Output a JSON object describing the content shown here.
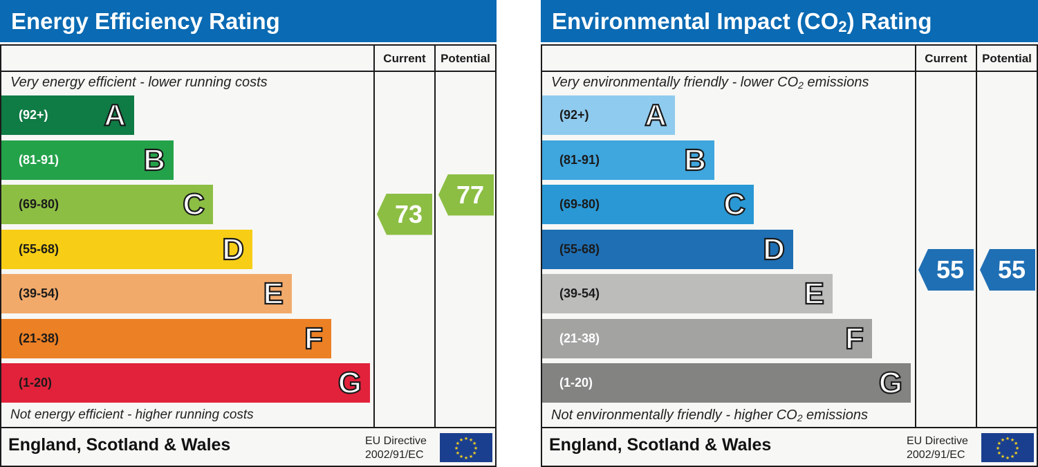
{
  "chart_data": [
    {
      "type": "bar",
      "title": "Energy Efficiency Rating",
      "columns": [
        "Current",
        "Potential"
      ],
      "top_caption": "Very energy efficient - lower running costs",
      "bottom_caption": "Not energy efficient - higher running costs",
      "bands": [
        {
          "letter": "A",
          "range": "(92+)",
          "color": "#0f7b45",
          "text_color": "#ffffff"
        },
        {
          "letter": "B",
          "range": "(81-91)",
          "color": "#24a24a",
          "text_color": "#ffffff"
        },
        {
          "letter": "C",
          "range": "(69-80)",
          "color": "#8cbe44",
          "text_color": "#1a1a1a"
        },
        {
          "letter": "D",
          "range": "(55-68)",
          "color": "#f7ce15",
          "text_color": "#1a1a1a"
        },
        {
          "letter": "E",
          "range": "(39-54)",
          "color": "#f2aa6b",
          "text_color": "#1a1a1a"
        },
        {
          "letter": "F",
          "range": "(21-38)",
          "color": "#ec8024",
          "text_color": "#1a1a1a"
        },
        {
          "letter": "G",
          "range": "(1-20)",
          "color": "#e2223b",
          "text_color": "#1a1a1a"
        }
      ],
      "current": {
        "value": "73",
        "band": "C",
        "color": "#8cbe44"
      },
      "potential": {
        "value": "77",
        "band": "C",
        "color": "#8cbe44"
      },
      "footer": {
        "region": "England, Scotland & Wales",
        "directive_line1": "EU Directive",
        "directive_line2": "2002/91/EC"
      }
    },
    {
      "type": "bar",
      "title_main": "Environmental Impact (CO",
      "title_sub": "2",
      "title_end": ") Rating",
      "columns": [
        "Current",
        "Potential"
      ],
      "top_caption_main": "Very environmentally friendly - lower CO",
      "top_caption_sub": "2",
      "top_caption_end": " emissions",
      "bottom_caption_main": "Not environmentally friendly - higher CO",
      "bottom_caption_sub": "2",
      "bottom_caption_end": " emissions",
      "bands": [
        {
          "letter": "A",
          "range": "(92+)",
          "color": "#8fcbef",
          "text_color": "#1a1a1a"
        },
        {
          "letter": "B",
          "range": "(81-91)",
          "color": "#3fa6de",
          "text_color": "#1a1a1a"
        },
        {
          "letter": "C",
          "range": "(69-80)",
          "color": "#2a98d4",
          "text_color": "#1a1a1a"
        },
        {
          "letter": "D",
          "range": "(55-68)",
          "color": "#1f6fb4",
          "text_color": "#1a1a1a"
        },
        {
          "letter": "E",
          "range": "(39-54)",
          "color": "#bcbcbb",
          "text_color": "#1a1a1a"
        },
        {
          "letter": "F",
          "range": "(21-38)",
          "color": "#a3a3a2",
          "text_color": "#ffffff"
        },
        {
          "letter": "G",
          "range": "(1-20)",
          "color": "#838382",
          "text_color": "#ffffff"
        }
      ],
      "current": {
        "value": "55",
        "band": "D",
        "color": "#1f6fb4"
      },
      "potential": {
        "value": "55",
        "band": "D",
        "color": "#1f6fb4"
      },
      "footer": {
        "region": "England, Scotland & Wales",
        "directive_line1": "EU Directive",
        "directive_line2": "2002/91/EC"
      }
    }
  ]
}
